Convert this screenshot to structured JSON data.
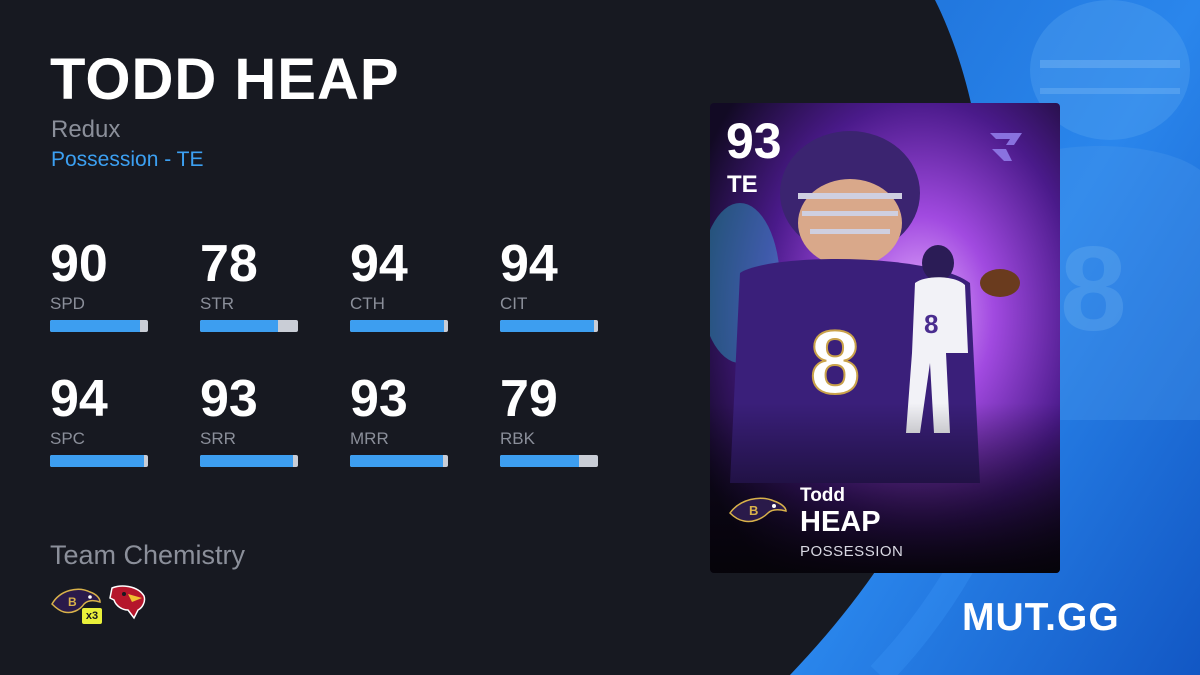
{
  "player": {
    "name": "TODD HEAP",
    "program": "Redux",
    "archetype_line": "Possession - TE"
  },
  "stats": [
    {
      "value": "90",
      "label": "SPD",
      "fill": 0.92
    },
    {
      "value": "78",
      "label": "STR",
      "fill": 0.8
    },
    {
      "value": "94",
      "label": "CTH",
      "fill": 0.96
    },
    {
      "value": "94",
      "label": "CIT",
      "fill": 0.96
    },
    {
      "value": "94",
      "label": "SPC",
      "fill": 0.96
    },
    {
      "value": "93",
      "label": "SRR",
      "fill": 0.95
    },
    {
      "value": "93",
      "label": "MRR",
      "fill": 0.95
    },
    {
      "value": "79",
      "label": "RBK",
      "fill": 0.81
    }
  ],
  "chemistry": {
    "title": "Team Chemistry",
    "teams": [
      {
        "icon": "ravens-logo-icon",
        "count": "x3"
      },
      {
        "icon": "cardinals-logo-icon"
      }
    ]
  },
  "card": {
    "overall": "93",
    "position": "TE",
    "first_name": "Todd",
    "last_name": "HEAP",
    "archetype": "POSSESSION",
    "program_icon": "redux-logo-icon",
    "team_icon": "ravens-logo-icon"
  },
  "brand": "MUT.GG",
  "colors": {
    "background": "#171921",
    "accent_blue": "#3ca0f2",
    "bar_fill": "#3d9ef0",
    "bar_track": "#c9cdd6",
    "muted_text": "#8b8f9a",
    "card_purple": "#7a2fd0"
  }
}
